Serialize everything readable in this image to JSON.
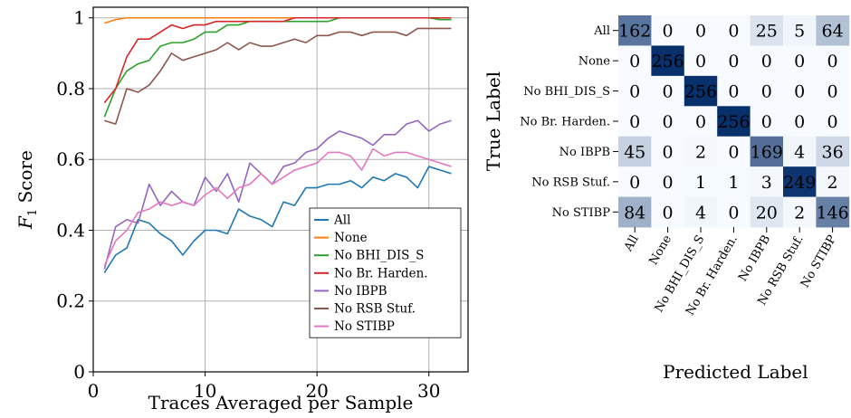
{
  "chart_data": [
    {
      "type": "line",
      "title": "",
      "xlabel": "Traces Averaged per Sample",
      "ylabel_base": "F",
      "ylabel_sub": "1",
      "ylabel_rest": " Score",
      "xlim": [
        0,
        33.5
      ],
      "ylim": [
        0,
        1.03
      ],
      "xticks": [
        0,
        10,
        20,
        30
      ],
      "yticks": [
        0,
        0.2,
        0.4,
        0.6,
        0.8,
        1
      ],
      "ytick_labels": [
        "0",
        "0.2",
        "0.4",
        "0.6",
        "0.8",
        "1"
      ],
      "grid": true,
      "legend_position": "lower-right",
      "x": [
        1,
        2,
        3,
        4,
        5,
        6,
        7,
        8,
        9,
        10,
        11,
        12,
        13,
        14,
        15,
        16,
        17,
        18,
        19,
        20,
        21,
        22,
        23,
        24,
        25,
        26,
        27,
        28,
        29,
        30,
        31,
        32
      ],
      "series": [
        {
          "name": "All",
          "color": "#1f77b4",
          "values": [
            0.28,
            0.33,
            0.35,
            0.43,
            0.42,
            0.39,
            0.37,
            0.33,
            0.37,
            0.4,
            0.4,
            0.39,
            0.46,
            0.44,
            0.43,
            0.41,
            0.48,
            0.47,
            0.52,
            0.52,
            0.53,
            0.53,
            0.54,
            0.52,
            0.55,
            0.54,
            0.56,
            0.55,
            0.52,
            0.58,
            0.57,
            0.56
          ]
        },
        {
          "name": "None",
          "color": "#ff7f0e",
          "values": [
            0.985,
            0.995,
            1,
            1,
            1,
            1,
            1,
            1,
            1,
            1,
            1,
            1,
            1,
            1,
            1,
            1,
            1,
            1,
            1,
            1,
            1,
            1,
            1,
            1,
            1,
            1,
            1,
            1,
            1,
            1,
            1,
            1
          ]
        },
        {
          "name": "No BHI_DIS_S",
          "color": "#2ca02c",
          "values": [
            0.72,
            0.8,
            0.85,
            0.87,
            0.88,
            0.92,
            0.93,
            0.93,
            0.94,
            0.96,
            0.96,
            0.98,
            0.98,
            0.99,
            0.99,
            0.99,
            0.99,
            0.99,
            0.99,
            0.99,
            0.99,
            1,
            1,
            1,
            1,
            1,
            1,
            1,
            1,
            1,
            0.995,
            0.995
          ]
        },
        {
          "name": "No Br. Harden.",
          "color": "#d62728",
          "values": [
            0.76,
            0.8,
            0.89,
            0.94,
            0.94,
            0.96,
            0.98,
            0.97,
            0.98,
            0.98,
            0.99,
            0.99,
            0.99,
            0.99,
            0.99,
            0.99,
            0.99,
            1,
            1,
            1,
            1,
            1,
            1,
            1,
            1,
            1,
            1,
            1,
            1,
            1,
            1,
            1
          ]
        },
        {
          "name": "No IBPB",
          "color": "#9467bd",
          "values": [
            0.29,
            0.41,
            0.43,
            0.42,
            0.53,
            0.47,
            0.51,
            0.48,
            0.47,
            0.55,
            0.51,
            0.56,
            0.48,
            0.59,
            0.56,
            0.53,
            0.58,
            0.59,
            0.62,
            0.63,
            0.66,
            0.68,
            0.67,
            0.66,
            0.64,
            0.67,
            0.67,
            0.7,
            0.71,
            0.68,
            0.7,
            0.71
          ]
        },
        {
          "name": "No RSB Stuf.",
          "color": "#8c564b",
          "values": [
            0.71,
            0.7,
            0.8,
            0.79,
            0.81,
            0.85,
            0.9,
            0.88,
            0.89,
            0.9,
            0.91,
            0.93,
            0.91,
            0.93,
            0.92,
            0.92,
            0.93,
            0.94,
            0.93,
            0.95,
            0.95,
            0.96,
            0.96,
            0.95,
            0.96,
            0.96,
            0.96,
            0.95,
            0.97,
            0.97,
            0.97,
            0.97
          ]
        },
        {
          "name": "No STIBP",
          "color": "#e377c2",
          "values": [
            0.3,
            0.37,
            0.4,
            0.45,
            0.46,
            0.48,
            0.47,
            0.48,
            0.47,
            0.5,
            0.52,
            0.49,
            0.52,
            0.53,
            0.56,
            0.53,
            0.55,
            0.57,
            0.58,
            0.59,
            0.62,
            0.62,
            0.61,
            0.57,
            0.63,
            0.61,
            0.62,
            0.62,
            0.61,
            0.6,
            0.59,
            0.58
          ]
        }
      ]
    },
    {
      "type": "heatmap",
      "title": "",
      "xlabel": "Predicted Label",
      "ylabel": "True Label",
      "row_labels": [
        "All",
        "None",
        "No BHI_DIS_S",
        "No Br. Harden.",
        "No IBPB",
        "No RSB Stuf.",
        "No STIBP"
      ],
      "col_labels": [
        "All",
        "None",
        "No BHI_DIS_S",
        "No Br. Harden.",
        "No IBPB",
        "No RSB Stuf.",
        "No STIBP"
      ],
      "vmax": 256,
      "colormap": "Blues",
      "matrix": [
        [
          162,
          0,
          0,
          0,
          25,
          5,
          64
        ],
        [
          0,
          256,
          0,
          0,
          0,
          0,
          0
        ],
        [
          0,
          0,
          256,
          0,
          0,
          0,
          0
        ],
        [
          0,
          0,
          0,
          256,
          0,
          0,
          0
        ],
        [
          45,
          0,
          2,
          0,
          169,
          4,
          36
        ],
        [
          0,
          0,
          1,
          1,
          3,
          249,
          2
        ],
        [
          84,
          0,
          4,
          0,
          20,
          2,
          146
        ]
      ]
    }
  ]
}
